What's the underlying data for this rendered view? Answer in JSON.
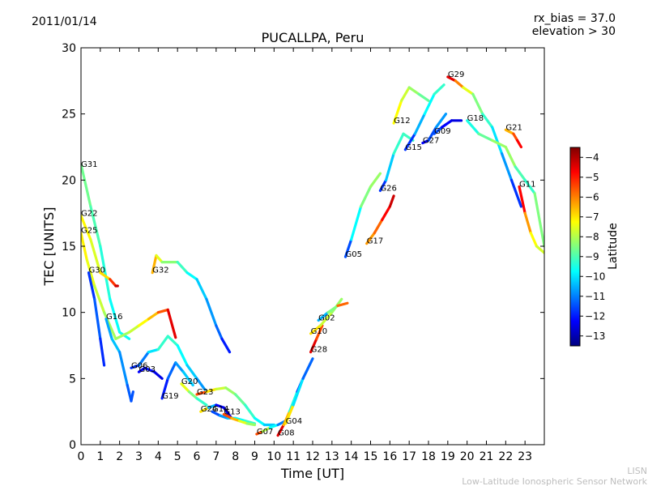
{
  "date": "2011/01/14",
  "rx_bias_text": "rx_bias = 37.0",
  "elevation_text": "elevation > 30",
  "footer": {
    "line1": "LISN",
    "line2": "Low-Latitude Ionospheric Sensor Network"
  },
  "chart_data": {
    "type": "scatter",
    "title": "PUCALLPA, Peru",
    "xlabel": "Time [UT]",
    "ylabel": "TEC [UNITS]",
    "xlim": [
      0,
      24
    ],
    "ylim": [
      0,
      30
    ],
    "xticks": [
      0,
      1,
      2,
      3,
      4,
      5,
      6,
      7,
      8,
      9,
      10,
      11,
      12,
      13,
      14,
      15,
      16,
      17,
      18,
      19,
      20,
      21,
      22,
      23
    ],
    "yticks": [
      0,
      5,
      10,
      15,
      20,
      25,
      30
    ],
    "colorbar": {
      "label": "Latitude",
      "min": -13.5,
      "max": -3.5,
      "ticks": [
        -4,
        -5,
        -6,
        -7,
        -8,
        -9,
        -10,
        -11,
        -12,
        -13
      ]
    },
    "series": [
      {
        "name": "G31",
        "label_at": [
          0,
          21
        ],
        "points": [
          [
            0,
            21.2,
            -8.5
          ],
          [
            0.5,
            18,
            -8.8
          ],
          [
            1,
            15,
            -9.2
          ],
          [
            1.5,
            11,
            -9.6
          ],
          [
            2,
            8.5,
            -9.8
          ],
          [
            2.5,
            8,
            -9.5
          ]
        ]
      },
      {
        "name": "G25",
        "label_at": [
          0,
          16
        ],
        "points": [
          [
            0,
            16,
            -7
          ],
          [
            0.3,
            14,
            -7.3
          ],
          [
            0.7,
            12,
            -7.6
          ],
          [
            1.2,
            10,
            -8
          ],
          [
            1.8,
            8,
            -8.3
          ],
          [
            2.5,
            8.5,
            -8.1
          ],
          [
            3,
            9,
            -7.5
          ],
          [
            3.5,
            9.5,
            -7
          ],
          [
            4,
            10,
            -6.2
          ],
          [
            4.5,
            10.2,
            -5
          ],
          [
            4.9,
            8.1,
            -4
          ]
        ]
      },
      {
        "name": "G22",
        "label_at": [
          0,
          17.3
        ],
        "points": [
          [
            0,
            17.3,
            -7
          ],
          [
            0.5,
            15.5,
            -7.4
          ],
          [
            1,
            13,
            -7.8
          ],
          [
            1.5,
            12.5,
            -6
          ],
          [
            1.8,
            12,
            -4.5
          ],
          [
            1.9,
            12,
            -4
          ]
        ]
      },
      {
        "name": "G30",
        "label_at": [
          0.4,
          13
        ],
        "points": [
          [
            0.4,
            13,
            -12
          ],
          [
            0.7,
            11,
            -11.5
          ],
          [
            1,
            8,
            -11.2
          ],
          [
            1.2,
            6,
            -12.5
          ]
        ]
      },
      {
        "name": "G16",
        "label_at": [
          1.3,
          9.5
        ],
        "points": [
          [
            1.3,
            9.5,
            -11
          ],
          [
            1.6,
            8,
            -10.2
          ],
          [
            2,
            7,
            -10.5
          ],
          [
            2.4,
            4.5,
            -11.2
          ],
          [
            2.6,
            3.3,
            -11.5
          ],
          [
            2.7,
            4,
            -11.4
          ]
        ]
      },
      {
        "name": "G32",
        "label_at": [
          3.7,
          13
        ],
        "points": [
          [
            3.7,
            13,
            -6
          ],
          [
            3.9,
            14.3,
            -7
          ],
          [
            4.2,
            13.8,
            -8
          ],
          [
            5,
            13.8,
            -8.8
          ],
          [
            5.5,
            13,
            -9.5
          ],
          [
            6,
            12.5,
            -10
          ],
          [
            6.5,
            11,
            -10.5
          ],
          [
            7,
            9,
            -11
          ],
          [
            7.3,
            8,
            -11.5
          ],
          [
            7.7,
            7,
            -12.5
          ]
        ]
      },
      {
        "name": "G06",
        "label_at": [
          2.6,
          5.8
        ],
        "points": [
          [
            2.6,
            5.8,
            -12
          ],
          [
            3,
            6,
            -11.6
          ],
          [
            3.5,
            7,
            -10.5
          ],
          [
            4,
            7.2,
            -9.5
          ],
          [
            4.5,
            8.2,
            -9
          ],
          [
            5,
            7.5,
            -9.5
          ],
          [
            5.5,
            6,
            -10
          ],
          [
            6,
            5,
            -10.5
          ],
          [
            6.5,
            4,
            -11
          ]
        ]
      },
      {
        "name": "G03",
        "label_at": [
          3,
          5.5
        ],
        "points": [
          [
            3,
            5.5,
            -12.5
          ],
          [
            3.3,
            5.8,
            -12
          ],
          [
            3.8,
            5.5,
            -12.2
          ],
          [
            4.2,
            5,
            -12.8
          ]
        ]
      },
      {
        "name": "G20",
        "label_at": [
          5.2,
          4.6
        ],
        "points": [
          [
            5.2,
            4.6,
            -7
          ],
          [
            5.6,
            4,
            -8
          ],
          [
            6,
            3.5,
            -9
          ],
          [
            6.5,
            3,
            -9.5
          ]
        ]
      },
      {
        "name": "G19",
        "label_at": [
          4.2,
          3.5
        ],
        "points": [
          [
            4.2,
            3.5,
            -12.5
          ],
          [
            4.5,
            5,
            -11.5
          ],
          [
            4.9,
            6.2,
            -11
          ],
          [
            5.3,
            5.5,
            -10.5
          ],
          [
            5.8,
            4.5,
            -10
          ]
        ]
      },
      {
        "name": "G23",
        "label_at": [
          6,
          3.8
        ],
        "points": [
          [
            6,
            3.8,
            -4.5
          ],
          [
            6.5,
            4,
            -6.5
          ],
          [
            7,
            4.2,
            -7.5
          ],
          [
            7.5,
            4.3,
            -8
          ],
          [
            8,
            3.8,
            -8.5
          ],
          [
            8.5,
            3,
            -9
          ],
          [
            9,
            2,
            -9.5
          ],
          [
            9.5,
            1.5,
            -10
          ],
          [
            10,
            1.5,
            -10.5
          ]
        ]
      },
      {
        "name": "G24",
        "label_at": [
          6.2,
          2.5
        ],
        "points": [
          [
            6.2,
            2.5,
            -5
          ],
          [
            6.6,
            2.8,
            -9
          ],
          [
            7,
            3,
            -12
          ],
          [
            7.4,
            2.8,
            -12.5
          ],
          [
            7.8,
            2,
            -12.6
          ]
        ]
      },
      {
        "name": "G14",
        "label_at": [
          6.8,
          2.5
        ],
        "points": [
          [
            6.8,
            2.5,
            -12
          ],
          [
            7.2,
            2.2,
            -11
          ],
          [
            7.6,
            2,
            -10.5
          ],
          [
            8,
            2,
            -10
          ],
          [
            8.5,
            1.8,
            -9.5
          ],
          [
            9,
            1.6,
            -9
          ]
        ]
      },
      {
        "name": "G13",
        "label_at": [
          7.4,
          2.3
        ],
        "points": [
          [
            7.4,
            2.3,
            -5
          ],
          [
            7.8,
            2,
            -6
          ],
          [
            8.2,
            1.8,
            -7
          ],
          [
            8.6,
            1.6,
            -8
          ],
          [
            9,
            1.5,
            -8.5
          ]
        ]
      },
      {
        "name": "G07",
        "label_at": [
          9.1,
          0.8
        ],
        "points": [
          [
            9.1,
            0.8,
            -4
          ],
          [
            9.4,
            1,
            -7
          ],
          [
            9.8,
            1.3,
            -9
          ],
          [
            10.2,
            1.5,
            -10.5
          ],
          [
            10.6,
            1.8,
            -11.5
          ]
        ]
      },
      {
        "name": "G08",
        "label_at": [
          10.2,
          0.7
        ],
        "points": [
          [
            10.2,
            0.7,
            -4
          ],
          [
            10.5,
            1.5,
            -5
          ],
          [
            10.8,
            2.5,
            -8
          ],
          [
            11.2,
            4,
            -11
          ],
          [
            11.5,
            5,
            -12.5
          ]
        ]
      },
      {
        "name": "G04",
        "label_at": [
          10.6,
          1.6
        ],
        "points": [
          [
            10.6,
            1.6,
            -5
          ],
          [
            11,
            3,
            -9
          ],
          [
            11.5,
            5,
            -11
          ],
          [
            12,
            6.5,
            -11.5
          ]
        ]
      },
      {
        "name": "G28",
        "label_at": [
          11.9,
          7
        ],
        "points": [
          [
            11.9,
            7,
            -4
          ],
          [
            12.2,
            8,
            -5
          ],
          [
            12.5,
            9,
            -6
          ]
        ]
      },
      {
        "name": "G10",
        "label_at": [
          11.9,
          8.4
        ],
        "points": [
          [
            11.9,
            8.4,
            -6.5
          ],
          [
            12.4,
            9,
            -7.5
          ],
          [
            13,
            10,
            -8
          ],
          [
            13.5,
            11,
            -8.5
          ]
        ]
      },
      {
        "name": "G02",
        "label_at": [
          12.3,
          9.4
        ],
        "points": [
          [
            12.3,
            9.4,
            -11
          ],
          [
            12.8,
            10,
            -10
          ],
          [
            13.3,
            10.5,
            -7
          ],
          [
            13.8,
            10.7,
            -4.5
          ]
        ]
      },
      {
        "name": "G05",
        "label_at": [
          13.7,
          14.2
        ],
        "points": [
          [
            13.7,
            14.2,
            -12.5
          ],
          [
            14,
            15.5,
            -10.5
          ],
          [
            14.5,
            18,
            -9
          ],
          [
            15,
            19.5,
            -8
          ],
          [
            15.5,
            20.5,
            -8.5
          ]
        ]
      },
      {
        "name": "G17",
        "label_at": [
          14.8,
          15.2
        ],
        "points": [
          [
            14.8,
            15.2,
            -6
          ],
          [
            15.2,
            16,
            -6.5
          ],
          [
            15.6,
            17,
            -5
          ],
          [
            16,
            18,
            -4.5
          ],
          [
            16.2,
            18.8,
            -4
          ]
        ]
      },
      {
        "name": "G26",
        "label_at": [
          15.5,
          19.2
        ],
        "points": [
          [
            15.5,
            19.2,
            -12.5
          ],
          [
            15.8,
            20,
            -11
          ],
          [
            16.2,
            22,
            -9.5
          ],
          [
            16.7,
            23.5,
            -9
          ],
          [
            17.2,
            23,
            -9.3
          ]
        ]
      },
      {
        "name": "G12",
        "label_at": [
          16.2,
          24.3
        ],
        "points": [
          [
            16.2,
            24.3,
            -7
          ],
          [
            16.6,
            26,
            -7.5
          ],
          [
            17,
            27,
            -8
          ],
          [
            17.5,
            26.5,
            -8.5
          ],
          [
            18,
            26,
            -9
          ]
        ]
      },
      {
        "name": "G15",
        "label_at": [
          16.8,
          22.3
        ],
        "points": [
          [
            16.8,
            22.3,
            -12.5
          ],
          [
            17.3,
            23.5,
            -11
          ],
          [
            17.8,
            25,
            -10
          ],
          [
            18.3,
            26.5,
            -9.5
          ],
          [
            18.8,
            27.2,
            -9
          ]
        ]
      },
      {
        "name": "G27",
        "label_at": [
          17.7,
          22.8
        ],
        "points": [
          [
            17.7,
            22.8,
            -12.5
          ],
          [
            18,
            23,
            -12
          ],
          [
            18.4,
            24,
            -11
          ],
          [
            18.9,
            25,
            -10.5
          ]
        ]
      },
      {
        "name": "G09",
        "label_at": [
          18.3,
          23.5
        ],
        "points": [
          [
            18.3,
            23.5,
            -11
          ],
          [
            18.7,
            24,
            -12
          ],
          [
            19.2,
            24.5,
            -12.5
          ],
          [
            19.7,
            24.5,
            -12.6
          ]
        ]
      },
      {
        "name": "G29",
        "label_at": [
          19,
          27.8
        ],
        "points": [
          [
            19,
            27.8,
            -4
          ],
          [
            19.4,
            27.5,
            -5
          ],
          [
            19.8,
            27,
            -7
          ],
          [
            20.3,
            26.5,
            -8
          ],
          [
            20.8,
            25,
            -9
          ],
          [
            21.3,
            24,
            -9.5
          ],
          [
            21.8,
            22,
            -10.5
          ],
          [
            22.3,
            20,
            -11
          ],
          [
            22.8,
            18,
            -12.5
          ]
        ]
      },
      {
        "name": "G18",
        "label_at": [
          20,
          24.5
        ],
        "points": [
          [
            20,
            24.5,
            -10
          ],
          [
            20.6,
            23.5,
            -9
          ],
          [
            21.3,
            23,
            -8.5
          ],
          [
            22,
            22.5,
            -8
          ],
          [
            22.5,
            21,
            -8.5
          ],
          [
            23,
            20,
            -9.5
          ],
          [
            23.5,
            19,
            -9
          ],
          [
            24,
            15,
            -8
          ]
        ]
      },
      {
        "name": "G21",
        "label_at": [
          22,
          23.8
        ],
        "points": [
          [
            22,
            23.8,
            -7
          ],
          [
            22.4,
            23.5,
            -6
          ],
          [
            22.6,
            23,
            -5
          ],
          [
            22.8,
            22.5,
            -4.5
          ]
        ]
      },
      {
        "name": "G11",
        "label_at": [
          22.7,
          19.5
        ],
        "points": [
          [
            22.7,
            19.5,
            -4
          ],
          [
            23,
            17.5,
            -5.5
          ],
          [
            23.3,
            16,
            -7
          ],
          [
            23.6,
            15,
            -7.5
          ],
          [
            24,
            14.5,
            -7.8
          ]
        ]
      }
    ]
  }
}
